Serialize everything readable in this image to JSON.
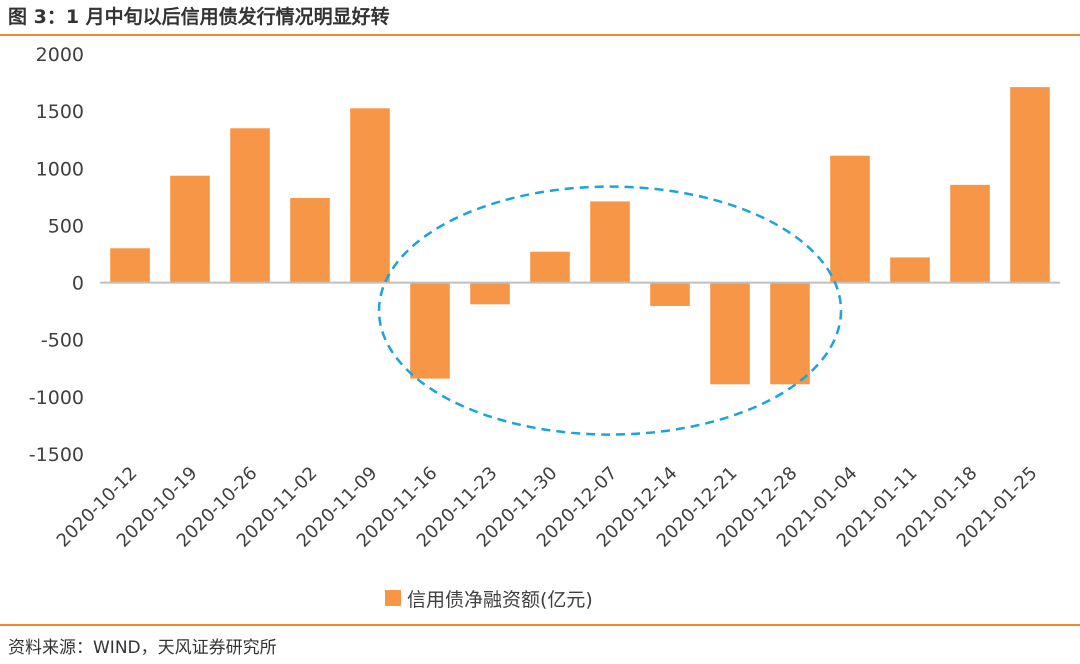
{
  "figure": {
    "title": "图 3：1 月中旬以后信用债发行情况明显好转",
    "source": "资料来源：WIND，天风证券研究所"
  },
  "colors": {
    "bar": "#f79646",
    "accent_rule": "#f28a2a",
    "ellipse": "#1aa3dd",
    "axis": "#bfbfbf",
    "text": "#404040"
  },
  "chart_data": {
    "type": "bar",
    "title": "",
    "xlabel": "",
    "ylabel": "",
    "ylim": [
      -1500,
      2000
    ],
    "yticks": [
      2000,
      1500,
      1000,
      500,
      0,
      -500,
      -1000,
      -1500
    ],
    "grid": false,
    "legend_position": "bottom",
    "categories": [
      "2020-10-12",
      "2020-10-19",
      "2020-10-26",
      "2020-11-02",
      "2020-11-09",
      "2020-11-16",
      "2020-11-23",
      "2020-11-30",
      "2020-12-07",
      "2020-12-14",
      "2020-12-21",
      "2020-12-28",
      "2021-01-04",
      "2021-01-11",
      "2021-01-18",
      "2021-01-25"
    ],
    "series": [
      {
        "name": "信用债净融资额(亿元)",
        "values": [
          300,
          935,
          1350,
          740,
          1525,
          -840,
          -190,
          270,
          710,
          -205,
          -890,
          -890,
          1110,
          220,
          855,
          1710
        ]
      }
    ],
    "annotation": {
      "shape": "dashed-ellipse",
      "from_category": "2020-11-16",
      "to_category": "2020-12-28"
    }
  }
}
